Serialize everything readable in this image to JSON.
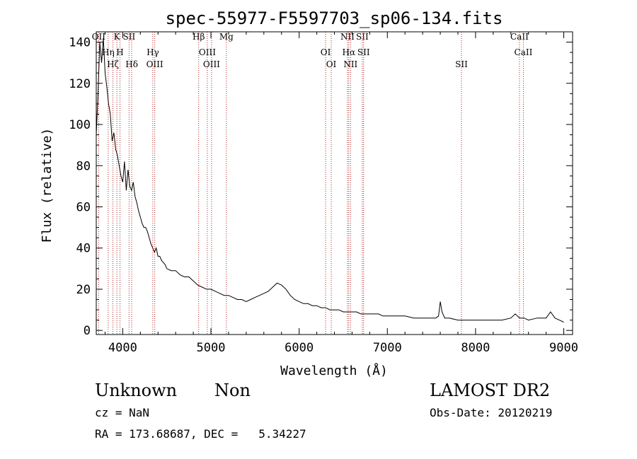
{
  "chart_data": {
    "type": "line",
    "title": "spec-55977-F5597703_sp06-134.fits",
    "xlabel": "Wavelength (Å)",
    "ylabel": "Flux (relative)",
    "xlim": [
      3700,
      9100
    ],
    "ylim": [
      -2,
      145
    ],
    "xticks": [
      4000,
      5000,
      6000,
      7000,
      8000,
      9000
    ],
    "yticks": [
      0,
      20,
      40,
      60,
      80,
      100,
      120,
      140
    ],
    "series": [
      {
        "color": "#000000",
        "x": [
          3700,
          3720,
          3740,
          3760,
          3780,
          3800,
          3820,
          3840,
          3860,
          3880,
          3900,
          3920,
          3940,
          3960,
          3980,
          4000,
          4020,
          4040,
          4060,
          4080,
          4100,
          4120,
          4140,
          4160,
          4180,
          4200,
          4220,
          4240,
          4260,
          4280,
          4300,
          4320,
          4340,
          4360,
          4380,
          4400,
          4420,
          4440,
          4460,
          4480,
          4500,
          4550,
          4600,
          4650,
          4700,
          4750,
          4800,
          4850,
          4900,
          4950,
          5000,
          5050,
          5100,
          5150,
          5200,
          5250,
          5300,
          5350,
          5400,
          5450,
          5500,
          5550,
          5600,
          5650,
          5700,
          5750,
          5800,
          5850,
          5900,
          5950,
          6000,
          6050,
          6100,
          6150,
          6200,
          6250,
          6300,
          6350,
          6400,
          6450,
          6500,
          6550,
          6600,
          6650,
          6700,
          6750,
          6800,
          6850,
          6900,
          6950,
          7000,
          7100,
          7200,
          7300,
          7400,
          7500,
          7550,
          7580,
          7600,
          7620,
          7650,
          7700,
          7800,
          7900,
          8000,
          8100,
          8200,
          8300,
          8400,
          8450,
          8500,
          8550,
          8600,
          8700,
          8800,
          8850,
          8900,
          8950,
          9000
        ],
        "y": [
          95,
          115,
          140,
          130,
          142,
          125,
          118,
          110,
          105,
          92,
          96,
          88,
          85,
          80,
          75,
          72,
          82,
          68,
          78,
          70,
          68,
          72,
          65,
          62,
          58,
          55,
          52,
          50,
          50,
          48,
          45,
          42,
          40,
          38,
          40,
          36,
          36,
          34,
          33,
          32,
          30,
          29,
          29,
          27,
          26,
          26,
          24,
          22,
          21,
          20,
          20,
          19,
          18,
          17,
          17,
          16,
          15,
          15,
          14,
          15,
          16,
          17,
          18,
          19,
          21,
          23,
          22,
          20,
          17,
          15,
          14,
          13,
          13,
          12,
          12,
          11,
          11,
          10,
          10,
          10,
          9,
          9,
          9,
          9,
          8,
          8,
          8,
          8,
          8,
          7,
          7,
          7,
          7,
          6,
          6,
          6,
          6,
          7,
          14,
          9,
          6,
          6,
          5,
          5,
          5,
          5,
          5,
          5,
          6,
          8,
          6,
          6,
          5,
          6,
          6,
          9,
          6,
          5,
          4
        ]
      }
    ],
    "lines": [
      {
        "label": "OII",
        "x": 3727
      },
      {
        "label": "Hη",
        "x": 3835
      },
      {
        "label": "Hζ",
        "x": 3889
      },
      {
        "label": "K",
        "x": 3934
      },
      {
        "label": "H",
        "x": 3969
      },
      {
        "label": "Hδ",
        "x": 4102
      },
      {
        "label": "SII",
        "x": 4072
      },
      {
        "label": "Hγ",
        "x": 4341
      },
      {
        "label": "OIII",
        "x": 4363
      },
      {
        "label": "Hβ",
        "x": 4861
      },
      {
        "label": "OIII",
        "x": 4959
      },
      {
        "label": "OIII",
        "x": 5007
      },
      {
        "label": "Mg",
        "x": 5175
      },
      {
        "label": "OI",
        "x": 6300
      },
      {
        "label": "OI",
        "x": 6364
      },
      {
        "label": "NII",
        "x": 6548
      },
      {
        "label": "Hα",
        "x": 6563
      },
      {
        "label": "NII",
        "x": 6583
      },
      {
        "label": "SII",
        "x": 6716
      },
      {
        "label": "SII",
        "x": 6731
      },
      {
        "label": "SII",
        "x": 7840
      },
      {
        "label": "CaII",
        "x": 8498
      },
      {
        "label": "CaII",
        "x": 8542
      }
    ]
  },
  "footer": {
    "object_class": "Unknown",
    "subclass": "Non",
    "survey": "LAMOST DR2",
    "cz": "cz = NaN",
    "obs_date": "Obs-Date: 20120219",
    "coords": "RA = 173.68687, DEC =   5.34227"
  }
}
